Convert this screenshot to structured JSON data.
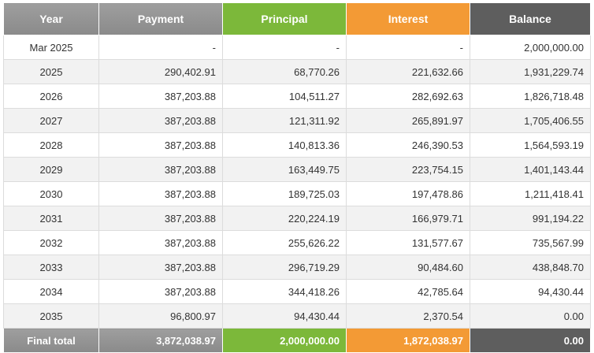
{
  "header": {
    "year": "Year",
    "payment": "Payment",
    "principal": "Principal",
    "interest": "Interest",
    "balance": "Balance"
  },
  "colors": {
    "header_grey": "#959595",
    "principal_green": "#7cb83a",
    "interest_orange": "#f39a35",
    "balance_dark": "#5e5e5e"
  },
  "rows": [
    {
      "year": "Mar 2025",
      "payment": "-",
      "principal": "-",
      "interest": "-",
      "balance": "2,000,000.00"
    },
    {
      "year": "2025",
      "payment": "290,402.91",
      "principal": "68,770.26",
      "interest": "221,632.66",
      "balance": "1,931,229.74"
    },
    {
      "year": "2026",
      "payment": "387,203.88",
      "principal": "104,511.27",
      "interest": "282,692.63",
      "balance": "1,826,718.48"
    },
    {
      "year": "2027",
      "payment": "387,203.88",
      "principal": "121,311.92",
      "interest": "265,891.97",
      "balance": "1,705,406.55"
    },
    {
      "year": "2028",
      "payment": "387,203.88",
      "principal": "140,813.36",
      "interest": "246,390.53",
      "balance": "1,564,593.19"
    },
    {
      "year": "2029",
      "payment": "387,203.88",
      "principal": "163,449.75",
      "interest": "223,754.15",
      "balance": "1,401,143.44"
    },
    {
      "year": "2030",
      "payment": "387,203.88",
      "principal": "189,725.03",
      "interest": "197,478.86",
      "balance": "1,211,418.41"
    },
    {
      "year": "2031",
      "payment": "387,203.88",
      "principal": "220,224.19",
      "interest": "166,979.71",
      "balance": "991,194.22"
    },
    {
      "year": "2032",
      "payment": "387,203.88",
      "principal": "255,626.22",
      "interest": "131,577.67",
      "balance": "735,567.99"
    },
    {
      "year": "2033",
      "payment": "387,203.88",
      "principal": "296,719.29",
      "interest": "90,484.60",
      "balance": "438,848.70"
    },
    {
      "year": "2034",
      "payment": "387,203.88",
      "principal": "344,418.26",
      "interest": "42,785.64",
      "balance": "94,430.44"
    },
    {
      "year": "2035",
      "payment": "96,800.97",
      "principal": "94,430.44",
      "interest": "2,370.54",
      "balance": "0.00"
    }
  ],
  "footer": {
    "label": "Final total",
    "payment": "3,872,038.97",
    "principal": "2,000,000.00",
    "interest": "1,872,038.97",
    "balance": "0.00"
  }
}
